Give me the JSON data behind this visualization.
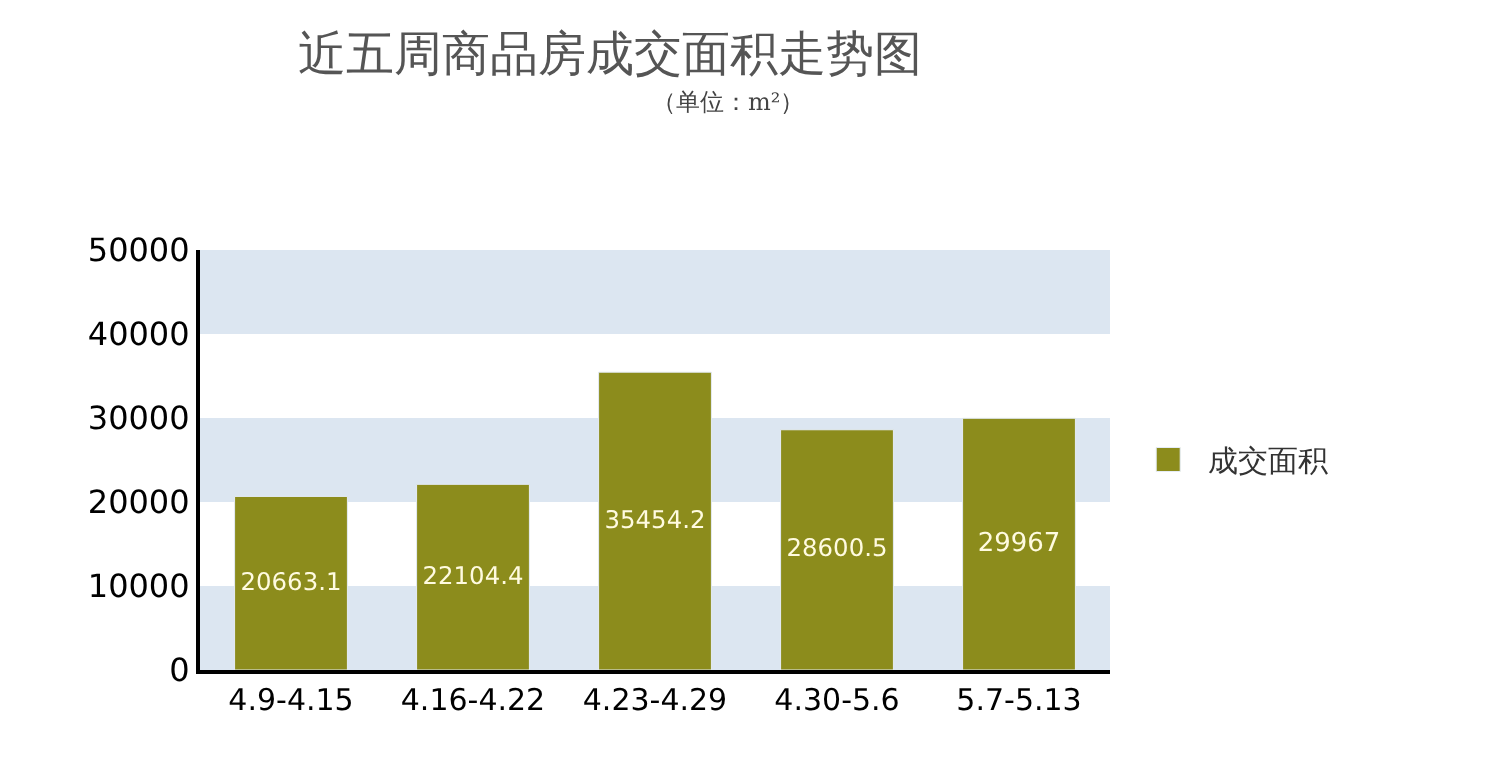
{
  "chart_data": {
    "type": "bar",
    "title": "近五周商品房成交面积走势图",
    "subtitle": "（单位：m²）",
    "categories": [
      "4.9-4.15",
      "4.16-4.22",
      "4.23-4.29",
      "4.30-5.6",
      "5.7-5.13"
    ],
    "series": [
      {
        "name": "成交面积",
        "color": "#8c8c1c",
        "values": [
          20663.1,
          22104.4,
          35454.2,
          28600.5,
          29967
        ]
      }
    ],
    "ylim": [
      0,
      50000
    ],
    "yticks": [
      0,
      10000,
      20000,
      30000,
      40000,
      50000
    ],
    "bands": [
      {
        "axis": "y",
        "from": 0,
        "to": 10000,
        "color": "#dce6f1"
      },
      {
        "axis": "y",
        "from": 20000,
        "to": 30000,
        "color": "#dce6f1"
      },
      {
        "axis": "y",
        "from": 40000,
        "to": 50000,
        "color": "#dce6f1"
      }
    ],
    "data_labels": true,
    "legend": "right",
    "grid": false
  }
}
